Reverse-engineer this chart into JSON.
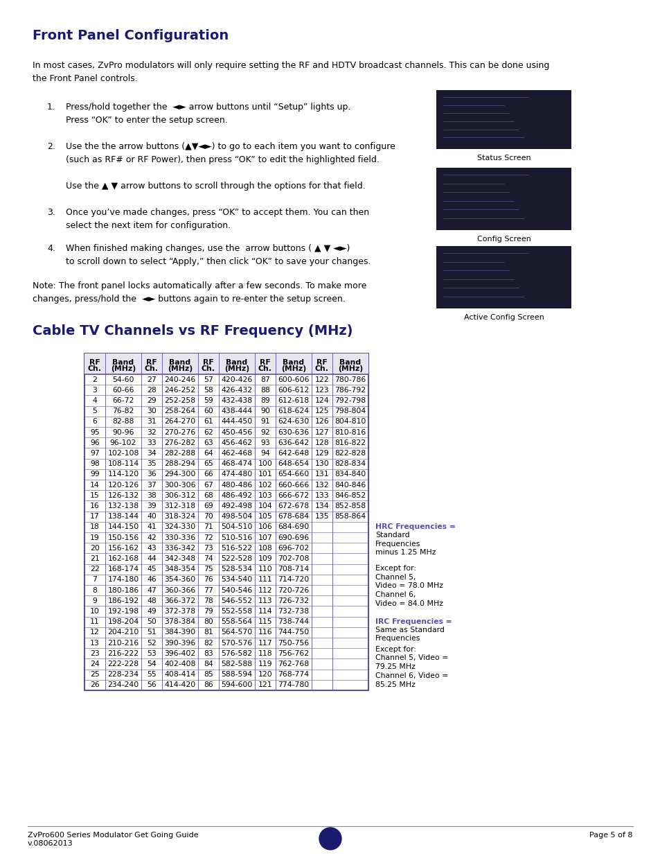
{
  "title1": "Front Panel Configuration",
  "title2": "Cable TV Channels vs RF Frequency (MHz)",
  "heading_color": "#1a1a6e",
  "body_text": "In most cases, ZvPro modulators will only require setting the RF and HDTV broadcast channels. This can be done using\nthe Front Panel controls.",
  "step1_num": "1.",
  "step1_text": "Press/hold together the  ◄► arrow buttons until “Setup” lights up.\nPress “OK” to enter the setup screen.",
  "step2_num": "2.",
  "step2_text": "Use the the arrow buttons (▲▼◄►) to go to each item you want to configure\n(such as RF# or RF Power), then press “OK” to edit the highlighted field.",
  "step2b_text": "Use the ▲ ▼ arrow buttons to scroll through the options for that field.",
  "step3_num": "3.",
  "step3_text": "Once you’ve made changes, press “OK” to accept them. You can then\nselect the next item for configuration.",
  "step4_num": "4.",
  "step4_text": "When finished making changes, use the  arrow buttons ( ▲ ▼ ◄►)\nto scroll down to select “Apply,” then click “OK” to save your changes.",
  "note_text": "Note: The front panel locks automatically after a few seconds. To make more\nchanges, press/hold the  ◄► buttons again to re-enter the setup screen.",
  "screen_labels": [
    "Status Screen",
    "Config Screen",
    "Active Config Screen"
  ],
  "table_data": [
    [
      "2",
      "54-60",
      "27",
      "240-246",
      "57",
      "420-426",
      "87",
      "600-606",
      "122",
      "780-786"
    ],
    [
      "3",
      "60-66",
      "28",
      "246-252",
      "58",
      "426-432",
      "88",
      "606-612",
      "123",
      "786-792"
    ],
    [
      "4",
      "66-72",
      "29",
      "252-258",
      "59",
      "432-438",
      "89",
      "612-618",
      "124",
      "792-798"
    ],
    [
      "5",
      "76-82",
      "30",
      "258-264",
      "60",
      "438-444",
      "90",
      "618-624",
      "125",
      "798-804"
    ],
    [
      "6",
      "82-88",
      "31",
      "264-270",
      "61",
      "444-450",
      "91",
      "624-630",
      "126",
      "804-810"
    ],
    [
      "95",
      "90-96",
      "32",
      "270-276",
      "62",
      "450-456",
      "92",
      "630-636",
      "127",
      "810-816"
    ],
    [
      "96",
      "96-102",
      "33",
      "276-282",
      "63",
      "456-462",
      "93",
      "636-642",
      "128",
      "816-822"
    ],
    [
      "97",
      "102-108",
      "34",
      "282-288",
      "64",
      "462-468",
      "94",
      "642-648",
      "129",
      "822-828"
    ],
    [
      "98",
      "108-114",
      "35",
      "288-294",
      "65",
      "468-474",
      "100",
      "648-654",
      "130",
      "828-834"
    ],
    [
      "99",
      "114-120",
      "36",
      "294-300",
      "66",
      "474-480",
      "101",
      "654-660",
      "131",
      "834-840"
    ],
    [
      "14",
      "120-126",
      "37",
      "300-306",
      "67",
      "480-486",
      "102",
      "660-666",
      "132",
      "840-846"
    ],
    [
      "15",
      "126-132",
      "38",
      "306-312",
      "68",
      "486-492",
      "103",
      "666-672",
      "133",
      "846-852"
    ],
    [
      "16",
      "132-138",
      "39",
      "312-318",
      "69",
      "492-498",
      "104",
      "672-678",
      "134",
      "852-858"
    ],
    [
      "17",
      "138-144",
      "40",
      "318-324",
      "70",
      "498-504",
      "105",
      "678-684",
      "135",
      "858-864"
    ],
    [
      "18",
      "144-150",
      "41",
      "324-330",
      "71",
      "504-510",
      "106",
      "684-690",
      "",
      ""
    ],
    [
      "19",
      "150-156",
      "42",
      "330-336",
      "72",
      "510-516",
      "107",
      "690-696",
      "",
      ""
    ],
    [
      "20",
      "156-162",
      "43",
      "336-342",
      "73",
      "516-522",
      "108",
      "696-702",
      "",
      ""
    ],
    [
      "21",
      "162-168",
      "44",
      "342-348",
      "74",
      "522-528",
      "109",
      "702-708",
      "",
      ""
    ],
    [
      "22",
      "168-174",
      "45",
      "348-354",
      "75",
      "528-534",
      "110",
      "708-714",
      "",
      ""
    ],
    [
      "7",
      "174-180",
      "46",
      "354-360",
      "76",
      "534-540",
      "111",
      "714-720",
      "",
      ""
    ],
    [
      "8",
      "180-186",
      "47",
      "360-366",
      "77",
      "540-546",
      "112",
      "720-726",
      "",
      ""
    ],
    [
      "9",
      "186-192",
      "48",
      "366-372",
      "78",
      "546-552",
      "113",
      "726-732",
      "",
      ""
    ],
    [
      "10",
      "192-198",
      "49",
      "372-378",
      "79",
      "552-558",
      "114",
      "732-738",
      "",
      ""
    ],
    [
      "11",
      "198-204",
      "50",
      "378-384",
      "80",
      "558-564",
      "115",
      "738-744",
      "",
      ""
    ],
    [
      "12",
      "204-210",
      "51",
      "384-390",
      "81",
      "564-570",
      "116",
      "744-750",
      "",
      ""
    ],
    [
      "13",
      "210-216",
      "52",
      "390-396",
      "82",
      "570-576",
      "117",
      "750-756",
      "",
      ""
    ],
    [
      "23",
      "216-222",
      "53",
      "396-402",
      "83",
      "576-582",
      "118",
      "756-762",
      "",
      ""
    ],
    [
      "24",
      "222-228",
      "54",
      "402-408",
      "84",
      "582-588",
      "119",
      "762-768",
      "",
      ""
    ],
    [
      "25",
      "228-234",
      "55",
      "408-414",
      "85",
      "588-594",
      "120",
      "768-774",
      "",
      ""
    ],
    [
      "26",
      "234-240",
      "56",
      "414-420",
      "86",
      "594-600",
      "121",
      "774-780",
      "",
      ""
    ]
  ],
  "hrc_label": "HRC Frequencies =",
  "hrc_text": "Standard\nFrequencies\nminus 1.25 MHz",
  "hrc_except": "Except for:\nChannel 5,\nVideo = 78.0 MHz\nChannel 6,\nVideo = 84.0 MHz",
  "irc_label": "IRC Frequencies =",
  "irc_text": "Same as Standard\nFrequencies",
  "irc_except": "Except for:\nChannel 5, Video =\n79.25 MHz\nChannel 6, Video =\n85.25 MHz",
  "footer_left1": "ZvPro600 Series Modulator Get Going Guide",
  "footer_left2": "v.08062013",
  "footer_right": "Page 5 of 8",
  "table_border_color": "#5b4fa5",
  "table_header_bg": "#e8e4f0",
  "purple_text": "#5b4fa5",
  "page_bg": "#ffffff",
  "body_color": "#000000",
  "font_size_body": 9,
  "font_size_small": 8,
  "font_size_table": 7.8,
  "font_size_title1": 14,
  "font_size_title2": 14
}
